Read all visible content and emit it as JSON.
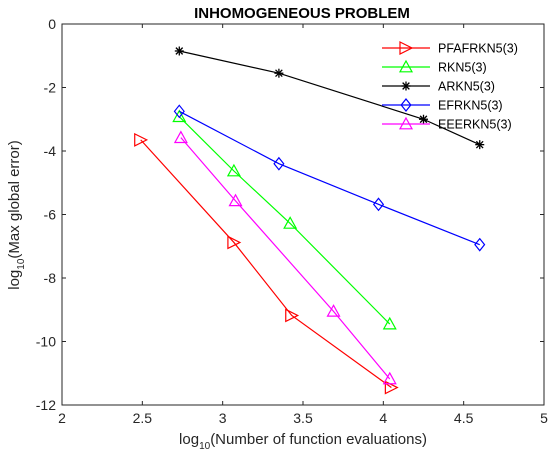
{
  "chart_data": {
    "type": "line",
    "title": "INHOMOGENEOUS PROBLEM",
    "xlabel": {
      "prefix": "log",
      "sub": "10",
      "rest": "(Number of function evaluations)"
    },
    "ylabel": {
      "prefix": "log",
      "sub": "10",
      "rest": "(Max global error)"
    },
    "xlim": [
      2,
      5
    ],
    "ylim": [
      -12,
      0
    ],
    "xticks": [
      2,
      2.5,
      3,
      3.5,
      4,
      4.5,
      5
    ],
    "xtick_labels": [
      "2",
      "2.5",
      "3",
      "3.5",
      "4",
      "4.5",
      "5"
    ],
    "yticks": [
      0,
      -2,
      -4,
      -6,
      -8,
      -10,
      -12
    ],
    "ytick_labels": [
      "0",
      "-2",
      "-4",
      "-6",
      "-8",
      "-10",
      "-12"
    ],
    "legend_position": "top-right",
    "series": [
      {
        "name": "PFAFRKN5(3)",
        "color": "#ff0000",
        "marker": "triangle-right",
        "x": [
          2.49,
          3.07,
          3.43,
          4.05
        ],
        "y": [
          -3.65,
          -6.88,
          -9.18,
          -11.45
        ]
      },
      {
        "name": "RKN5(3)",
        "color": "#00ff00",
        "marker": "triangle-up",
        "x": [
          2.73,
          3.07,
          3.42,
          4.04
        ],
        "y": [
          -2.92,
          -4.63,
          -6.28,
          -9.45
        ]
      },
      {
        "name": "ARKN5(3)",
        "color": "#000000",
        "marker": "asterisk",
        "x": [
          2.73,
          3.35,
          4.25,
          4.6
        ],
        "y": [
          -0.85,
          -1.55,
          -3.0,
          -3.8
        ]
      },
      {
        "name": "EFRKN5(3)",
        "color": "#0000ff",
        "marker": "diamond",
        "x": [
          2.73,
          3.35,
          3.97,
          4.6
        ],
        "y": [
          -2.75,
          -4.4,
          -5.68,
          -6.95
        ]
      },
      {
        "name": "EEERKN5(3)",
        "color": "#ff00ff",
        "marker": "triangle-up",
        "x": [
          2.74,
          3.08,
          3.69,
          4.04
        ],
        "y": [
          -3.58,
          -5.57,
          -9.05,
          -11.18
        ]
      }
    ]
  }
}
